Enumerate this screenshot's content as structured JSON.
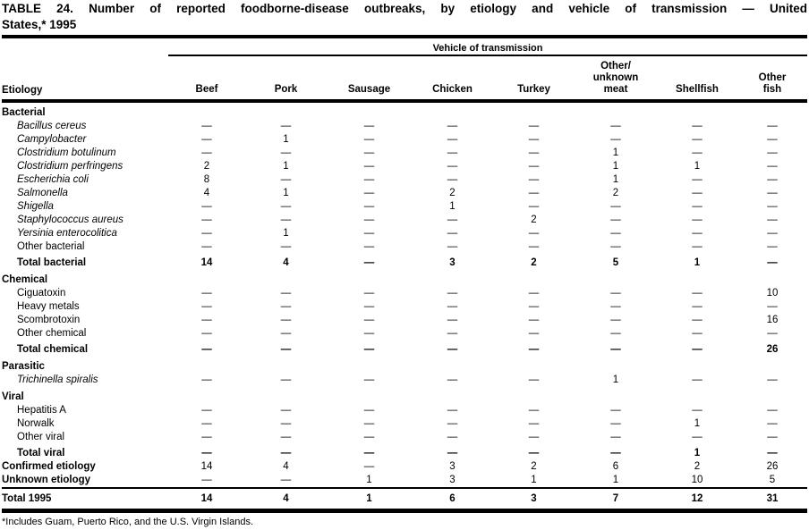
{
  "title_line1": "TABLE 24. Number of reported foodborne-disease outbreaks, by etiology and vehicle of transmission — United",
  "title_line2": "States,* 1995",
  "table": {
    "span_header": "Vehicle of transmission",
    "row_header": "Etiology",
    "columns": [
      "Beef",
      "Pork",
      "Sausage",
      "Chicken",
      "Turkey",
      "Other/\nunknown\nmeat",
      "Shellfish",
      "Other\nfish"
    ],
    "rows": [
      {
        "type": "section",
        "label": "Bacterial"
      },
      {
        "type": "item",
        "italic": true,
        "label": "Bacillus cereus",
        "cells": [
          "—",
          "—",
          "—",
          "—",
          "—",
          "—",
          "—",
          "—"
        ]
      },
      {
        "type": "item",
        "italic": true,
        "label": "Campylobacter",
        "cells": [
          "—",
          "1",
          "—",
          "—",
          "—",
          "—",
          "—",
          "—"
        ]
      },
      {
        "type": "item",
        "italic": true,
        "label": "Clostridium botulinum",
        "cells": [
          "—",
          "—",
          "—",
          "—",
          "—",
          "1",
          "—",
          "—"
        ]
      },
      {
        "type": "item",
        "italic": true,
        "label": "Clostridium perfringens",
        "cells": [
          "2",
          "1",
          "—",
          "—",
          "—",
          "1",
          "1",
          "—"
        ]
      },
      {
        "type": "item",
        "italic": true,
        "label": "Escherichia coli",
        "cells": [
          "8",
          "—",
          "—",
          "—",
          "—",
          "1",
          "—",
          "—"
        ]
      },
      {
        "type": "item",
        "italic": true,
        "label": "Salmonella",
        "cells": [
          "4",
          "1",
          "—",
          "2",
          "—",
          "2",
          "—",
          "—"
        ]
      },
      {
        "type": "item",
        "italic": true,
        "label": "Shigella",
        "cells": [
          "—",
          "—",
          "—",
          "1",
          "—",
          "—",
          "—",
          "—"
        ]
      },
      {
        "type": "item",
        "italic": true,
        "label": "Staphylococcus aureus",
        "cells": [
          "—",
          "—",
          "—",
          "—",
          "2",
          "—",
          "—",
          "—"
        ]
      },
      {
        "type": "item",
        "italic": true,
        "label": "Yersinia enterocolitica",
        "cells": [
          "—",
          "1",
          "—",
          "—",
          "—",
          "—",
          "—",
          "—"
        ]
      },
      {
        "type": "item",
        "italic": false,
        "label": "Other bacterial",
        "cells": [
          "—",
          "—",
          "—",
          "—",
          "—",
          "—",
          "—",
          "—"
        ]
      },
      {
        "type": "total",
        "label": "Total bacterial",
        "cells": [
          "14",
          "4",
          "—",
          "3",
          "2",
          "5",
          "1",
          "—"
        ]
      },
      {
        "type": "section",
        "label": "Chemical"
      },
      {
        "type": "item",
        "italic": false,
        "label": "Ciguatoxin",
        "cells": [
          "—",
          "—",
          "—",
          "—",
          "—",
          "—",
          "—",
          "10"
        ]
      },
      {
        "type": "item",
        "italic": false,
        "label": "Heavy metals",
        "cells": [
          "—",
          "—",
          "—",
          "—",
          "—",
          "—",
          "—",
          "—"
        ]
      },
      {
        "type": "item",
        "italic": false,
        "label": "Scombrotoxin",
        "cells": [
          "—",
          "—",
          "—",
          "—",
          "—",
          "—",
          "—",
          "16"
        ]
      },
      {
        "type": "item",
        "italic": false,
        "label": "Other chemical",
        "cells": [
          "—",
          "—",
          "—",
          "—",
          "—",
          "—",
          "—",
          "—"
        ]
      },
      {
        "type": "total",
        "label": "Total chemical",
        "cells": [
          "—",
          "—",
          "—",
          "—",
          "—",
          "—",
          "—",
          "26"
        ]
      },
      {
        "type": "section",
        "label": "Parasitic"
      },
      {
        "type": "item",
        "italic": true,
        "label": "Trichinella spiralis",
        "cells": [
          "—",
          "—",
          "—",
          "—",
          "—",
          "1",
          "—",
          "—"
        ]
      },
      {
        "type": "section",
        "label": "Viral"
      },
      {
        "type": "item",
        "italic": false,
        "label": "Hepatitis A",
        "cells": [
          "—",
          "—",
          "—",
          "—",
          "—",
          "—",
          "—",
          "—"
        ]
      },
      {
        "type": "item",
        "italic": false,
        "label": "Norwalk",
        "cells": [
          "—",
          "—",
          "—",
          "—",
          "—",
          "—",
          "1",
          "—"
        ]
      },
      {
        "type": "item",
        "italic": false,
        "label": "Other viral",
        "cells": [
          "—",
          "—",
          "—",
          "—",
          "—",
          "—",
          "—",
          "—"
        ]
      },
      {
        "type": "total",
        "label": "Total viral",
        "cells": [
          "—",
          "—",
          "—",
          "—",
          "—",
          "—",
          "1",
          "—"
        ]
      },
      {
        "type": "summary",
        "label": "Confirmed etiology",
        "cells": [
          "14",
          "4",
          "—",
          "3",
          "2",
          "6",
          "2",
          "26"
        ]
      },
      {
        "type": "summary",
        "label": "Unknown etiology",
        "cells": [
          "—",
          "—",
          "1",
          "3",
          "1",
          "1",
          "10",
          "5"
        ]
      },
      {
        "type": "grand",
        "label": "Total 1995",
        "cells": [
          "14",
          "4",
          "1",
          "6",
          "3",
          "7",
          "12",
          "31"
        ]
      }
    ]
  },
  "footnote": "*Includes Guam, Puerto Rico, and the U.S. Virgin Islands.",
  "colors": {
    "text": "#000000",
    "background": "#ffffff",
    "rule": "#000000"
  }
}
